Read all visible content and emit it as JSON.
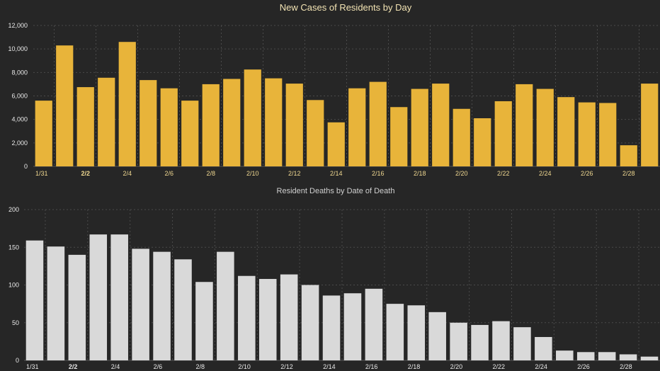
{
  "colors": {
    "background": "#262626",
    "cases_bar": "#e8b43a",
    "deaths_bar": "#d9d9d9",
    "cases_title": "#f2e3b3",
    "deaths_title": "#d0d0d0",
    "tick_text": "#e8e8e8",
    "cases_xtick": "#f0d890"
  },
  "chart_data": [
    {
      "type": "bar",
      "title": "New Cases of Residents by Day",
      "xlabel": "",
      "ylabel": "",
      "ylim": [
        0,
        12000
      ],
      "yticks": [
        0,
        2000,
        4000,
        6000,
        8000,
        10000,
        12000
      ],
      "ytick_labels": [
        "0",
        "2,000",
        "4,000",
        "6,000",
        "8,000",
        "10,000",
        "12,000"
      ],
      "xtick_labels": [
        "1/31",
        "2/2",
        "2/4",
        "2/6",
        "2/8",
        "2/10",
        "2/12",
        "2/14",
        "2/16",
        "2/18",
        "2/20",
        "2/22",
        "2/24",
        "2/26",
        "2/28"
      ],
      "grid": true,
      "categories": [
        "1/31",
        "2/1",
        "2/2",
        "2/3",
        "2/4",
        "2/5",
        "2/6",
        "2/7",
        "2/8",
        "2/9",
        "2/10",
        "2/11",
        "2/12",
        "2/13",
        "2/14",
        "2/15",
        "2/16",
        "2/17",
        "2/18",
        "2/19",
        "2/20",
        "2/21",
        "2/22",
        "2/23",
        "2/24",
        "2/25",
        "2/26",
        "2/27",
        "2/28",
        "3/1"
      ],
      "values": [
        5600,
        10300,
        6750,
        7550,
        10600,
        7350,
        6650,
        5600,
        7000,
        7450,
        8250,
        7500,
        7050,
        5650,
        3750,
        6650,
        7200,
        5050,
        6600,
        7050,
        4900,
        4100,
        5550,
        7000,
        6600,
        5900,
        5450,
        5400,
        1800,
        7050
      ]
    },
    {
      "type": "bar",
      "title": "Resident Deaths by Date of Death",
      "xlabel": "",
      "ylabel": "",
      "ylim": [
        0,
        200
      ],
      "yticks": [
        0,
        50,
        100,
        150,
        200
      ],
      "ytick_labels": [
        "0",
        "50",
        "100",
        "150",
        "200"
      ],
      "xtick_labels": [
        "1/31",
        "2/2",
        "2/4",
        "2/6",
        "2/8",
        "2/10",
        "2/12",
        "2/14",
        "2/16",
        "2/18",
        "2/20",
        "2/22",
        "2/24",
        "2/26",
        "2/28"
      ],
      "grid": true,
      "categories": [
        "1/31",
        "2/1",
        "2/2",
        "2/3",
        "2/4",
        "2/5",
        "2/6",
        "2/7",
        "2/8",
        "2/9",
        "2/10",
        "2/11",
        "2/12",
        "2/13",
        "2/14",
        "2/15",
        "2/16",
        "2/17",
        "2/18",
        "2/19",
        "2/20",
        "2/21",
        "2/22",
        "2/23",
        "2/24",
        "2/25",
        "2/26",
        "2/27",
        "2/28",
        "3/1"
      ],
      "values": [
        159,
        151,
        140,
        167,
        167,
        148,
        144,
        134,
        104,
        144,
        112,
        108,
        114,
        100,
        86,
        89,
        95,
        75,
        73,
        64,
        50,
        47,
        52,
        44,
        31,
        13,
        11,
        11,
        8,
        5
      ]
    }
  ]
}
